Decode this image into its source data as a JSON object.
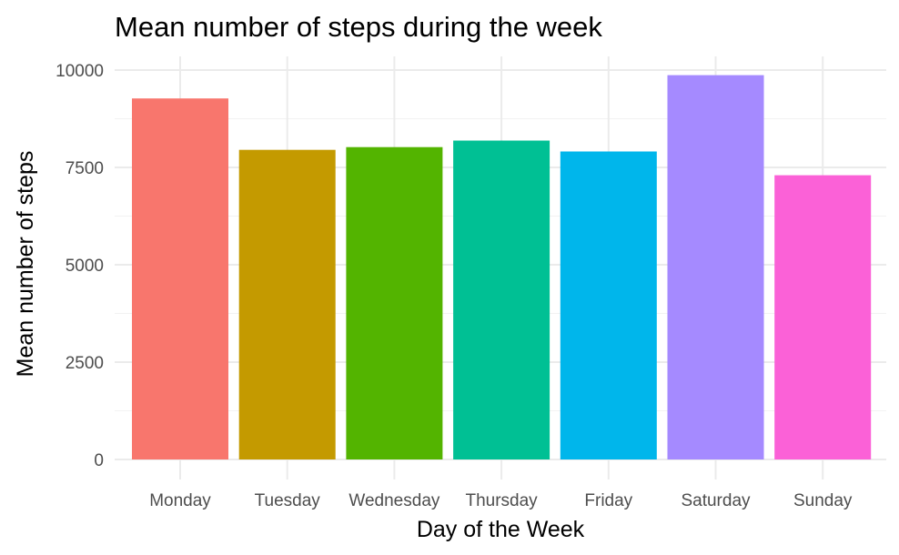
{
  "chart_data": {
    "type": "bar",
    "title": "Mean number of steps during the week",
    "xlabel": "Day of the Week",
    "ylabel": "Mean number of steps",
    "categories": [
      "Monday",
      "Tuesday",
      "Wednesday",
      "Thursday",
      "Friday",
      "Saturday",
      "Sunday"
    ],
    "values": [
      9270,
      7950,
      8020,
      8190,
      7910,
      9870,
      7300
    ],
    "colors": [
      "#F8766D",
      "#C49A00",
      "#53B400",
      "#00C094",
      "#00B6EB",
      "#A58AFF",
      "#FB61D7"
    ],
    "ylim": [
      0,
      10350
    ],
    "yticks": [
      0,
      2500,
      5000,
      7500,
      10000
    ],
    "ytick_labels": [
      "0",
      "2500",
      "5000",
      "7500",
      "10000"
    ],
    "grid": true,
    "legend": "none"
  }
}
